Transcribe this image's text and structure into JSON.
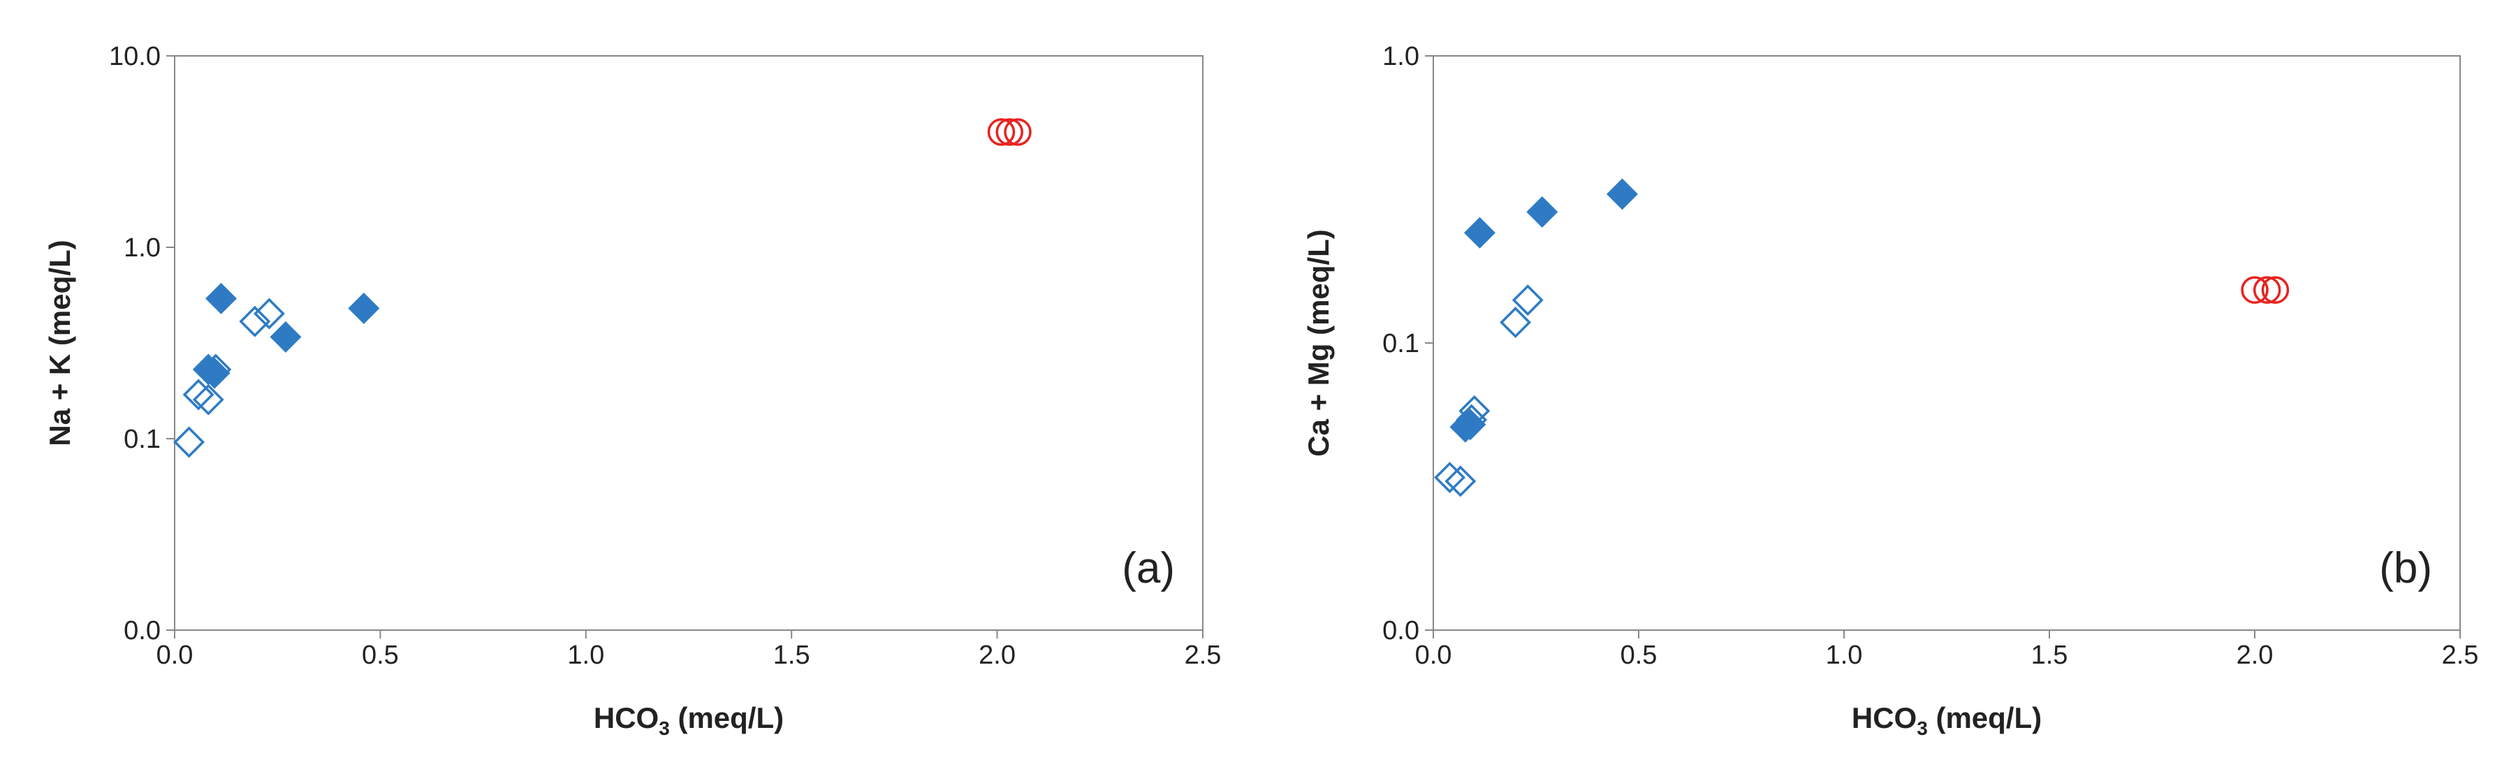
{
  "chart_data": [
    {
      "type": "scatter",
      "annotation": "(a)",
      "xlabel": [
        "HCO",
        "3",
        " (meq/L)"
      ],
      "ylabel": "Na + K (meq/L)",
      "xlim": [
        0,
        2.5
      ],
      "xticks": [
        {
          "value": 0,
          "label": "0.0"
        },
        0.5,
        {
          "value": 1,
          "label": "1.0"
        },
        1.5,
        {
          "value": 2,
          "label": "2.0"
        },
        2.5
      ],
      "ylim": [
        0.01,
        10
      ],
      "ylog": true,
      "yticks": [
        {
          "value": 0.01,
          "label": "0.0"
        },
        0.1,
        {
          "value": 1,
          "label": "1.0"
        },
        {
          "value": 10,
          "label": "10.0"
        }
      ],
      "series": [
        {
          "marker": "diamond",
          "filled": true,
          "color": "#2e7bc4",
          "x": [
            0.113,
            0.082,
            0.097,
            0.27,
            0.46
          ],
          "values": [
            0.54,
            0.23,
            0.22,
            0.34,
            0.48
          ]
        },
        {
          "marker": "diamond",
          "filled": false,
          "color": "#2e7bc4",
          "x": [
            0.035,
            0.058,
            0.082,
            0.1,
            0.195,
            0.23
          ],
          "values": [
            0.096,
            0.17,
            0.16,
            0.23,
            0.41,
            0.45
          ]
        },
        {
          "marker": "circle",
          "filled": false,
          "color": "#e8231f",
          "x": [
            2.01,
            2.03,
            2.05
          ],
          "values": [
            4.0,
            4.0,
            4.0
          ]
        }
      ]
    },
    {
      "type": "scatter",
      "annotation": "(b)",
      "xlabel": [
        "HCO",
        "3",
        " (meq/L)"
      ],
      "ylabel": "Ca + Mg (meq/L)",
      "xlim": [
        0,
        2.5
      ],
      "xticks": [
        {
          "value": 0,
          "label": "0.0"
        },
        0.5,
        {
          "value": 1,
          "label": "1.0"
        },
        1.5,
        {
          "value": 2,
          "label": "2.0"
        },
        2.5
      ],
      "ylim": [
        0.01,
        1
      ],
      "ylog": true,
      "yticks": [
        {
          "value": 0.01,
          "label": "0.0"
        },
        0.1,
        {
          "value": 1,
          "label": "1.0"
        }
      ],
      "series": [
        {
          "marker": "diamond",
          "filled": true,
          "color": "#2e7bc4",
          "x": [
            0.113,
            0.265,
            0.46,
            0.078,
            0.09
          ],
          "values": [
            0.242,
            0.286,
            0.33,
            0.051,
            0.052
          ]
        },
        {
          "marker": "diamond",
          "filled": false,
          "color": "#2e7bc4",
          "x": [
            0.04,
            0.066,
            0.093,
            0.1,
            0.2,
            0.23
          ],
          "values": [
            0.034,
            0.033,
            0.054,
            0.058,
            0.118,
            0.141
          ]
        },
        {
          "marker": "circle",
          "filled": false,
          "color": "#e8231f",
          "x": [
            2.0,
            2.03,
            2.05
          ],
          "values": [
            0.153,
            0.153,
            0.153
          ]
        }
      ]
    }
  ]
}
